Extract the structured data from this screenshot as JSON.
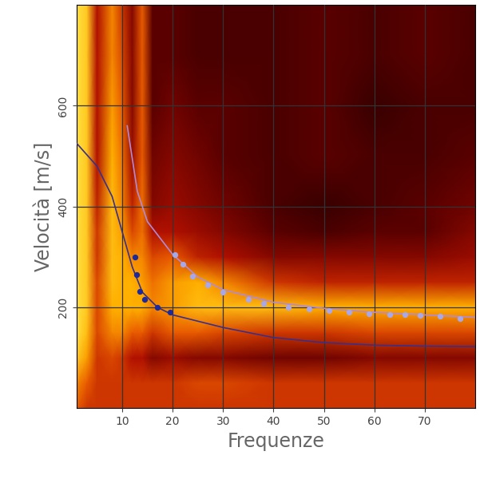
{
  "chart_data": {
    "type": "heatmap",
    "x_label": "Frequenze",
    "y_label": "Velocità [m/s]",
    "xlim": [
      1,
      80
    ],
    "ylim": [
      0,
      800
    ],
    "xticks": [
      10,
      20,
      30,
      40,
      50,
      60,
      70
    ],
    "yticks": [
      200,
      400,
      600
    ],
    "grid": true,
    "heatmap": {
      "x": [
        1,
        3,
        5,
        8,
        10,
        12,
        14,
        16,
        20,
        25,
        30,
        40,
        50,
        60,
        70,
        80
      ],
      "y": [
        0,
        50,
        100,
        150,
        200,
        250,
        300,
        350,
        400,
        500,
        600,
        700,
        800
      ],
      "cells": [
        [
          0.6,
          0.5,
          0.5,
          0.5,
          0.5,
          0.5,
          0.5,
          0.5,
          0.5,
          0.5,
          0.5,
          0.5,
          0.5,
          0.5,
          0.5,
          0.5
        ],
        [
          0.7,
          0.6,
          0.5,
          0.5,
          0.5,
          0.5,
          0.5,
          0.5,
          0.5,
          0.55,
          0.55,
          0.5,
          0.5,
          0.5,
          0.5,
          0.5
        ],
        [
          0.9,
          0.75,
          0.5,
          0.55,
          0.5,
          0.4,
          0.4,
          0.3,
          0.35,
          0.3,
          0.3,
          0.25,
          0.25,
          0.3,
          0.3,
          0.3
        ],
        [
          1.0,
          0.85,
          0.55,
          0.7,
          0.7,
          0.6,
          0.6,
          0.5,
          0.6,
          0.6,
          0.55,
          0.5,
          0.5,
          0.55,
          0.55,
          0.55
        ],
        [
          1.0,
          0.9,
          0.55,
          0.8,
          0.8,
          0.8,
          0.8,
          0.7,
          0.75,
          0.85,
          0.85,
          0.85,
          0.8,
          0.8,
          0.8,
          0.8
        ],
        [
          1.0,
          0.9,
          0.55,
          0.85,
          0.8,
          0.8,
          0.75,
          0.65,
          0.75,
          0.8,
          0.7,
          0.5,
          0.45,
          0.45,
          0.45,
          0.45
        ],
        [
          1.0,
          0.9,
          0.5,
          0.85,
          0.8,
          0.7,
          0.7,
          0.55,
          0.6,
          0.45,
          0.4,
          0.3,
          0.3,
          0.3,
          0.3,
          0.35
        ],
        [
          1.0,
          0.9,
          0.5,
          0.85,
          0.75,
          0.55,
          0.65,
          0.4,
          0.4,
          0.35,
          0.3,
          0.2,
          0.15,
          0.2,
          0.2,
          0.3
        ],
        [
          1.0,
          0.9,
          0.45,
          0.85,
          0.7,
          0.45,
          0.65,
          0.3,
          0.35,
          0.3,
          0.25,
          0.15,
          0.1,
          0.15,
          0.2,
          0.25
        ],
        [
          1.0,
          0.9,
          0.4,
          0.8,
          0.65,
          0.35,
          0.6,
          0.25,
          0.3,
          0.25,
          0.2,
          0.15,
          0.2,
          0.15,
          0.15,
          0.2
        ],
        [
          1.0,
          0.9,
          0.4,
          0.75,
          0.6,
          0.3,
          0.6,
          0.2,
          0.25,
          0.2,
          0.2,
          0.15,
          0.2,
          0.1,
          0.15,
          0.15
        ],
        [
          1.0,
          0.9,
          0.4,
          0.7,
          0.55,
          0.3,
          0.6,
          0.2,
          0.2,
          0.15,
          0.15,
          0.15,
          0.2,
          0.15,
          0.2,
          0.15
        ],
        [
          1.0,
          0.9,
          0.4,
          0.7,
          0.5,
          0.3,
          0.6,
          0.2,
          0.2,
          0.15,
          0.15,
          0.15,
          0.2,
          0.15,
          0.2,
          0.15
        ]
      ]
    },
    "series": [
      {
        "type": "line",
        "color": "#3a2f8a",
        "line_style": "solid",
        "x": [
          1,
          5,
          8,
          10,
          12,
          14,
          17,
          20,
          30,
          40,
          50,
          60,
          70,
          80
        ],
        "values": [
          525,
          480,
          420,
          350,
          280,
          230,
          200,
          185,
          160,
          140,
          130,
          125,
          123,
          122
        ]
      },
      {
        "type": "line",
        "color": "#b08ad8",
        "line_style": "solid",
        "x": [
          11,
          13,
          15,
          20,
          25,
          30,
          40,
          50,
          60,
          70,
          80
        ],
        "values": [
          560,
          430,
          370,
          305,
          260,
          235,
          210,
          198,
          190,
          185,
          180
        ]
      },
      {
        "type": "scatter",
        "color": "#1f2a9a",
        "marker": "o",
        "x": [
          12.5,
          12.8,
          13.5,
          14.5,
          17,
          19.5
        ],
        "values": [
          300,
          265,
          232,
          215,
          200,
          190
        ]
      },
      {
        "type": "scatter",
        "color": "#a8a8e8",
        "marker": "o",
        "x": [
          20.5,
          22,
          24,
          27,
          30,
          35,
          38,
          43,
          47,
          51,
          55,
          59,
          63,
          66,
          69,
          73,
          77
        ],
        "values": [
          305,
          285,
          262,
          245,
          230,
          215,
          208,
          200,
          196,
          193,
          190,
          188,
          186,
          185,
          184,
          182,
          178
        ]
      }
    ]
  }
}
